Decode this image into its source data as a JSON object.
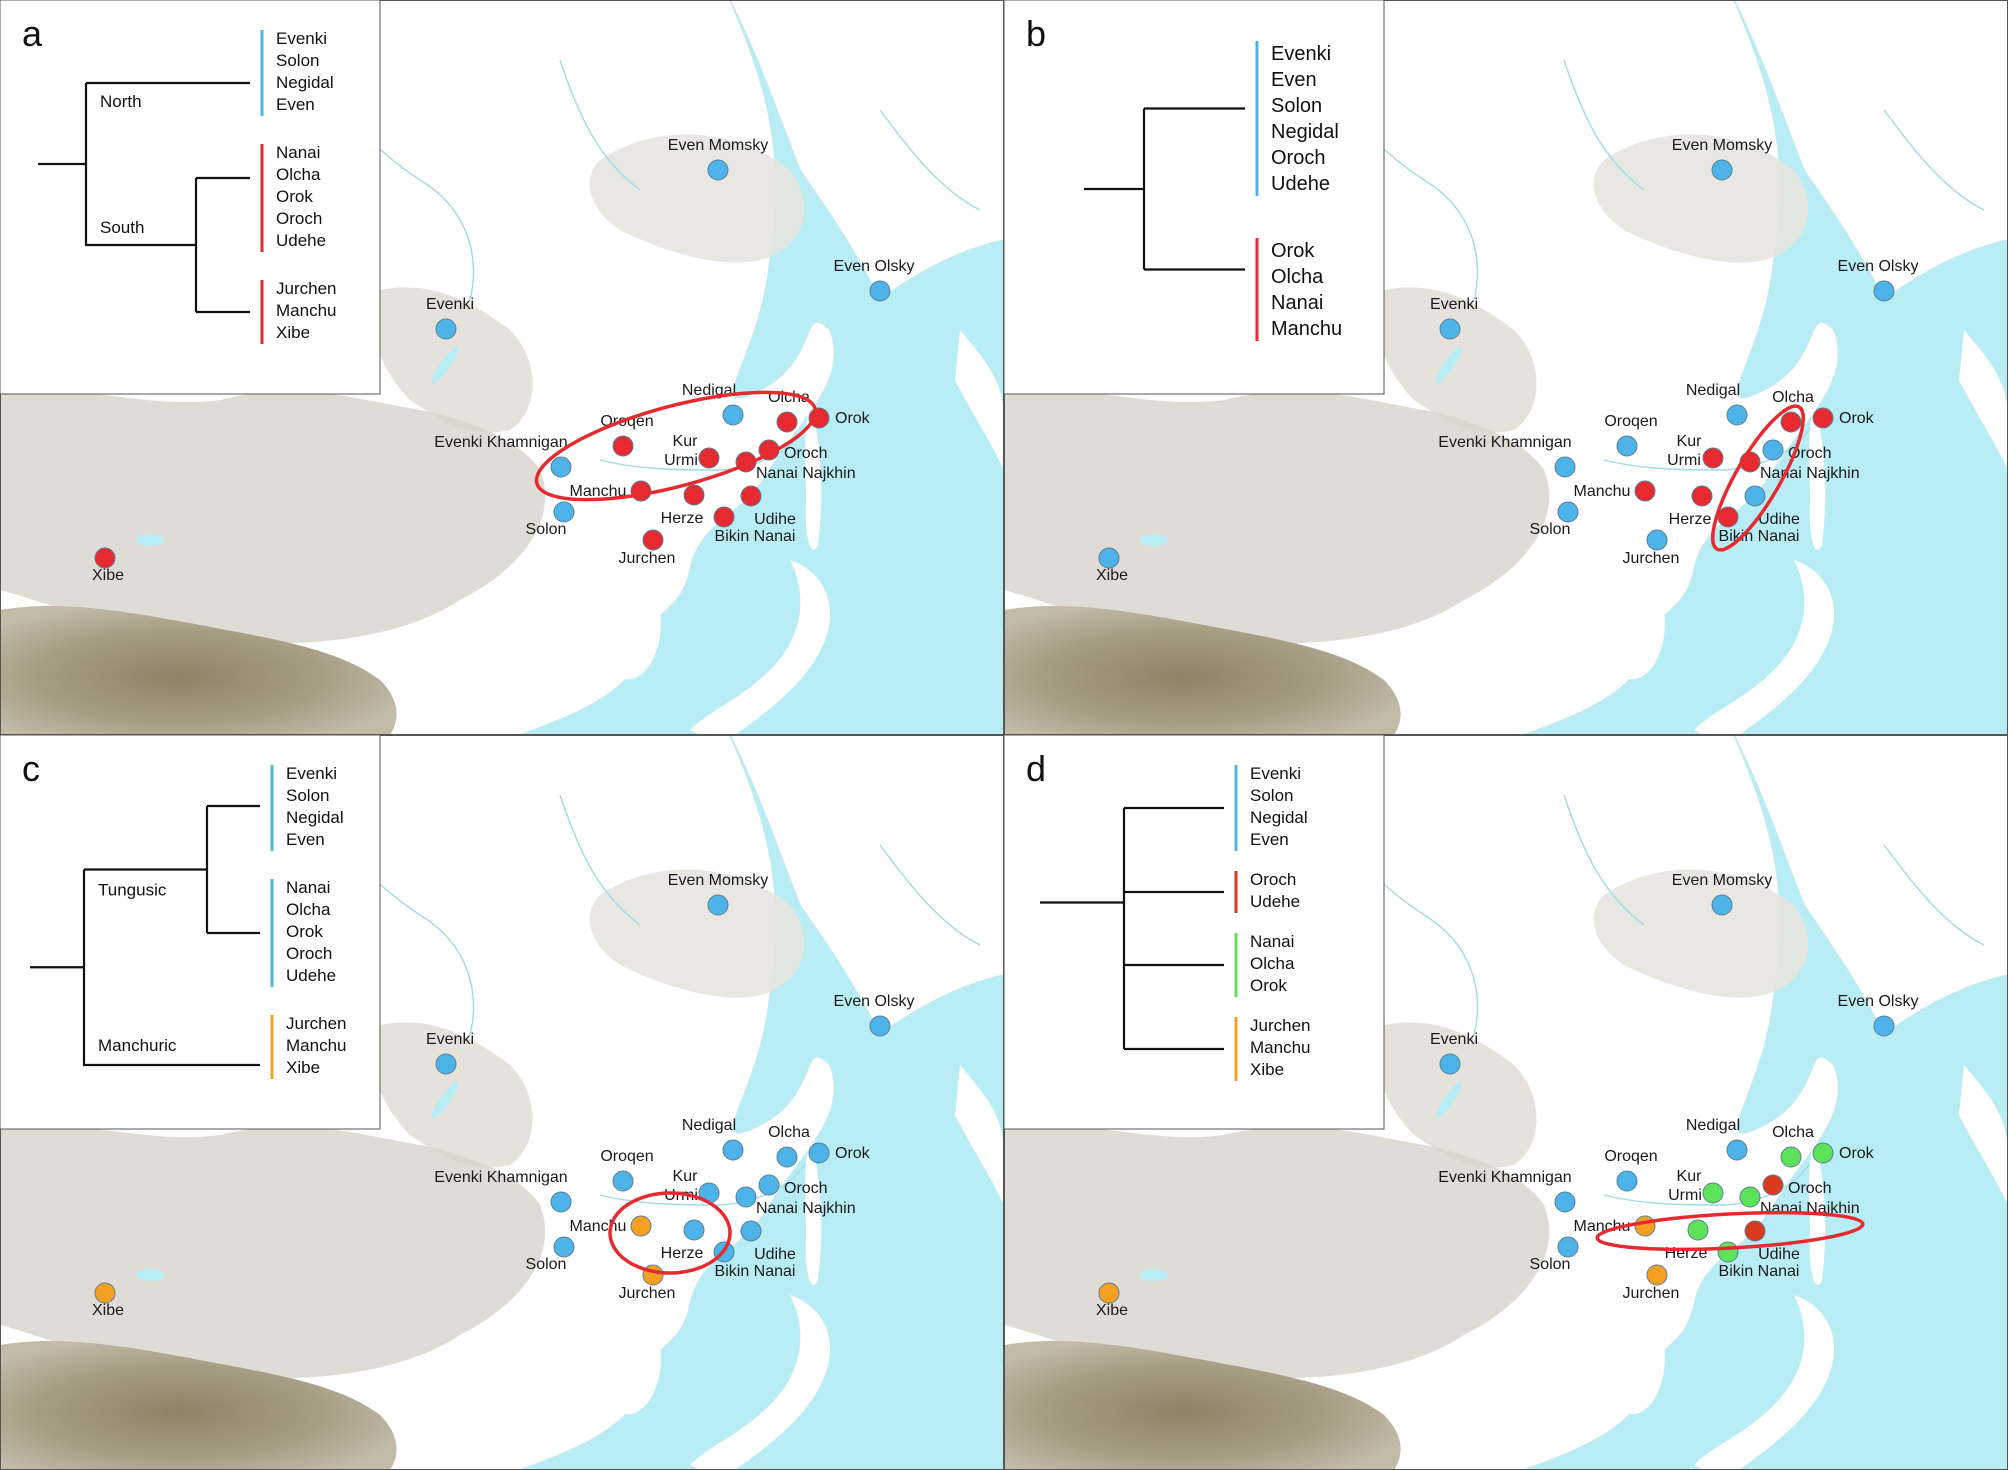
{
  "colors": {
    "north": "#4db3e8",
    "south": "#e62a2f",
    "manchuric": "#f5a023",
    "group_green": "#5ce35a",
    "group_red_dark": "#d83a1e",
    "sea": "#b8edf6",
    "land": "#ffffff",
    "highland": "#d8d6cc",
    "mountain": "#9c9277",
    "cluster_ring": "#e62a2f"
  },
  "panels": [
    {
      "letter": "a",
      "clades": [
        {
          "label": "North",
          "color": "north",
          "members": [
            "Evenki",
            "Solon",
            "Negidal",
            "Even"
          ]
        },
        {
          "label": "South",
          "color": "south",
          "members": [
            "Nanai",
            "Olcha",
            "Orok",
            "Oroch",
            "Udehe"
          ]
        },
        {
          "label": "",
          "color": "south",
          "members": [
            "Jurchen",
            "Manchu",
            "Xibe"
          ]
        }
      ],
      "sites": [
        {
          "name": "Even Momsky",
          "color": "north"
        },
        {
          "name": "Even Olsky",
          "color": "north"
        },
        {
          "name": "Evenki",
          "color": "north"
        },
        {
          "name": "Nedigal",
          "color": "north"
        },
        {
          "name": "Olcha",
          "color": "south"
        },
        {
          "name": "Orok",
          "color": "south"
        },
        {
          "name": "Oroqen",
          "color": "south"
        },
        {
          "name": "Kur",
          "color": "south"
        },
        {
          "name": "Urmi",
          "color": "south"
        },
        {
          "name": "Oroch",
          "color": "south"
        },
        {
          "name": "Nanai Najkhin",
          "color": "south"
        },
        {
          "name": "Evenki Khamnigan",
          "color": "north"
        },
        {
          "name": "Manchu",
          "color": "south"
        },
        {
          "name": "Solon",
          "color": "north"
        },
        {
          "name": "Herze",
          "color": "south"
        },
        {
          "name": "Udihe",
          "color": "south"
        },
        {
          "name": "Bikin Nanai",
          "color": "south"
        },
        {
          "name": "Jurchen",
          "color": "south"
        },
        {
          "name": "Xibe",
          "color": "south"
        }
      ]
    },
    {
      "letter": "b",
      "clades": [
        {
          "label": "",
          "color": "north",
          "members": [
            "Evenki",
            "Even",
            "Solon",
            "Negidal",
            "Oroch",
            "Udehe"
          ]
        },
        {
          "label": "",
          "color": "south",
          "members": [
            "Orok",
            "Olcha",
            "Nanai",
            "Manchu"
          ]
        }
      ],
      "sites": [
        {
          "name": "Even Momsky",
          "color": "north"
        },
        {
          "name": "Even Olsky",
          "color": "north"
        },
        {
          "name": "Evenki",
          "color": "north"
        },
        {
          "name": "Nedigal",
          "color": "north"
        },
        {
          "name": "Olcha",
          "color": "south"
        },
        {
          "name": "Orok",
          "color": "south"
        },
        {
          "name": "Oroqen",
          "color": "north"
        },
        {
          "name": "Kur",
          "color": "south"
        },
        {
          "name": "Urmi",
          "color": "south"
        },
        {
          "name": "Oroch",
          "color": "north"
        },
        {
          "name": "Nanai Najkhin",
          "color": "south"
        },
        {
          "name": "Evenki Khamnigan",
          "color": "north"
        },
        {
          "name": "Manchu",
          "color": "south"
        },
        {
          "name": "Solon",
          "color": "north"
        },
        {
          "name": "Herze",
          "color": "south"
        },
        {
          "name": "Udihe",
          "color": "north"
        },
        {
          "name": "Bikin Nanai",
          "color": "south"
        },
        {
          "name": "Jurchen",
          "color": "north"
        },
        {
          "name": "Xibe",
          "color": "north"
        }
      ]
    },
    {
      "letter": "c",
      "clades": [
        {
          "label": "Tungusic",
          "color": "north",
          "members": [
            "Evenki",
            "Solon",
            "Negidal",
            "Even"
          ]
        },
        {
          "label": "",
          "color": "north",
          "members": [
            "Nanai",
            "Olcha",
            "Orok",
            "Oroch",
            "Udehe"
          ]
        },
        {
          "label": "Manchuric",
          "color": "manchuric",
          "members": [
            "Jurchen",
            "Manchu",
            "Xibe"
          ]
        }
      ],
      "sites": [
        {
          "name": "Even Momsky",
          "color": "north"
        },
        {
          "name": "Even Olsky",
          "color": "north"
        },
        {
          "name": "Evenki",
          "color": "north"
        },
        {
          "name": "Nedigal",
          "color": "north"
        },
        {
          "name": "Olcha",
          "color": "north"
        },
        {
          "name": "Orok",
          "color": "north"
        },
        {
          "name": "Oroqen",
          "color": "north"
        },
        {
          "name": "Kur",
          "color": "north"
        },
        {
          "name": "Urmi",
          "color": "north"
        },
        {
          "name": "Oroch",
          "color": "north"
        },
        {
          "name": "Nanai Najkhin",
          "color": "north"
        },
        {
          "name": "Evenki Khamnigan",
          "color": "north"
        },
        {
          "name": "Manchu",
          "color": "manchuric"
        },
        {
          "name": "Solon",
          "color": "north"
        },
        {
          "name": "Herze",
          "color": "north"
        },
        {
          "name": "Udihe",
          "color": "north"
        },
        {
          "name": "Bikin Nanai",
          "color": "north"
        },
        {
          "name": "Jurchen",
          "color": "manchuric"
        },
        {
          "name": "Xibe",
          "color": "manchuric"
        }
      ]
    },
    {
      "letter": "d",
      "clades": [
        {
          "label": "",
          "color": "north",
          "members": [
            "Evenki",
            "Solon",
            "Negidal",
            "Even"
          ]
        },
        {
          "label": "",
          "color": "group_red_dark",
          "members": [
            "Oroch",
            "Udehe"
          ]
        },
        {
          "label": "",
          "color": "group_green",
          "members": [
            "Nanai",
            "Olcha",
            "Orok"
          ]
        },
        {
          "label": "",
          "color": "manchuric",
          "members": [
            "Jurchen",
            "Manchu",
            "Xibe"
          ]
        }
      ],
      "sites": [
        {
          "name": "Even Momsky",
          "color": "north"
        },
        {
          "name": "Even Olsky",
          "color": "north"
        },
        {
          "name": "Evenki",
          "color": "north"
        },
        {
          "name": "Nedigal",
          "color": "north"
        },
        {
          "name": "Olcha",
          "color": "group_green"
        },
        {
          "name": "Orok",
          "color": "group_green"
        },
        {
          "name": "Oroqen",
          "color": "north"
        },
        {
          "name": "Kur",
          "color": "group_green"
        },
        {
          "name": "Urmi",
          "color": "group_green"
        },
        {
          "name": "Oroch",
          "color": "group_red_dark"
        },
        {
          "name": "Nanai Najkhin",
          "color": "group_green"
        },
        {
          "name": "Evenki Khamnigan",
          "color": "north"
        },
        {
          "name": "Manchu",
          "color": "manchuric"
        },
        {
          "name": "Solon",
          "color": "north"
        },
        {
          "name": "Herze",
          "color": "group_green"
        },
        {
          "name": "Udihe",
          "color": "group_red_dark"
        },
        {
          "name": "Bikin Nanai",
          "color": "group_green"
        },
        {
          "name": "Jurchen",
          "color": "manchuric"
        },
        {
          "name": "Xibe",
          "color": "manchuric"
        }
      ]
    }
  ]
}
